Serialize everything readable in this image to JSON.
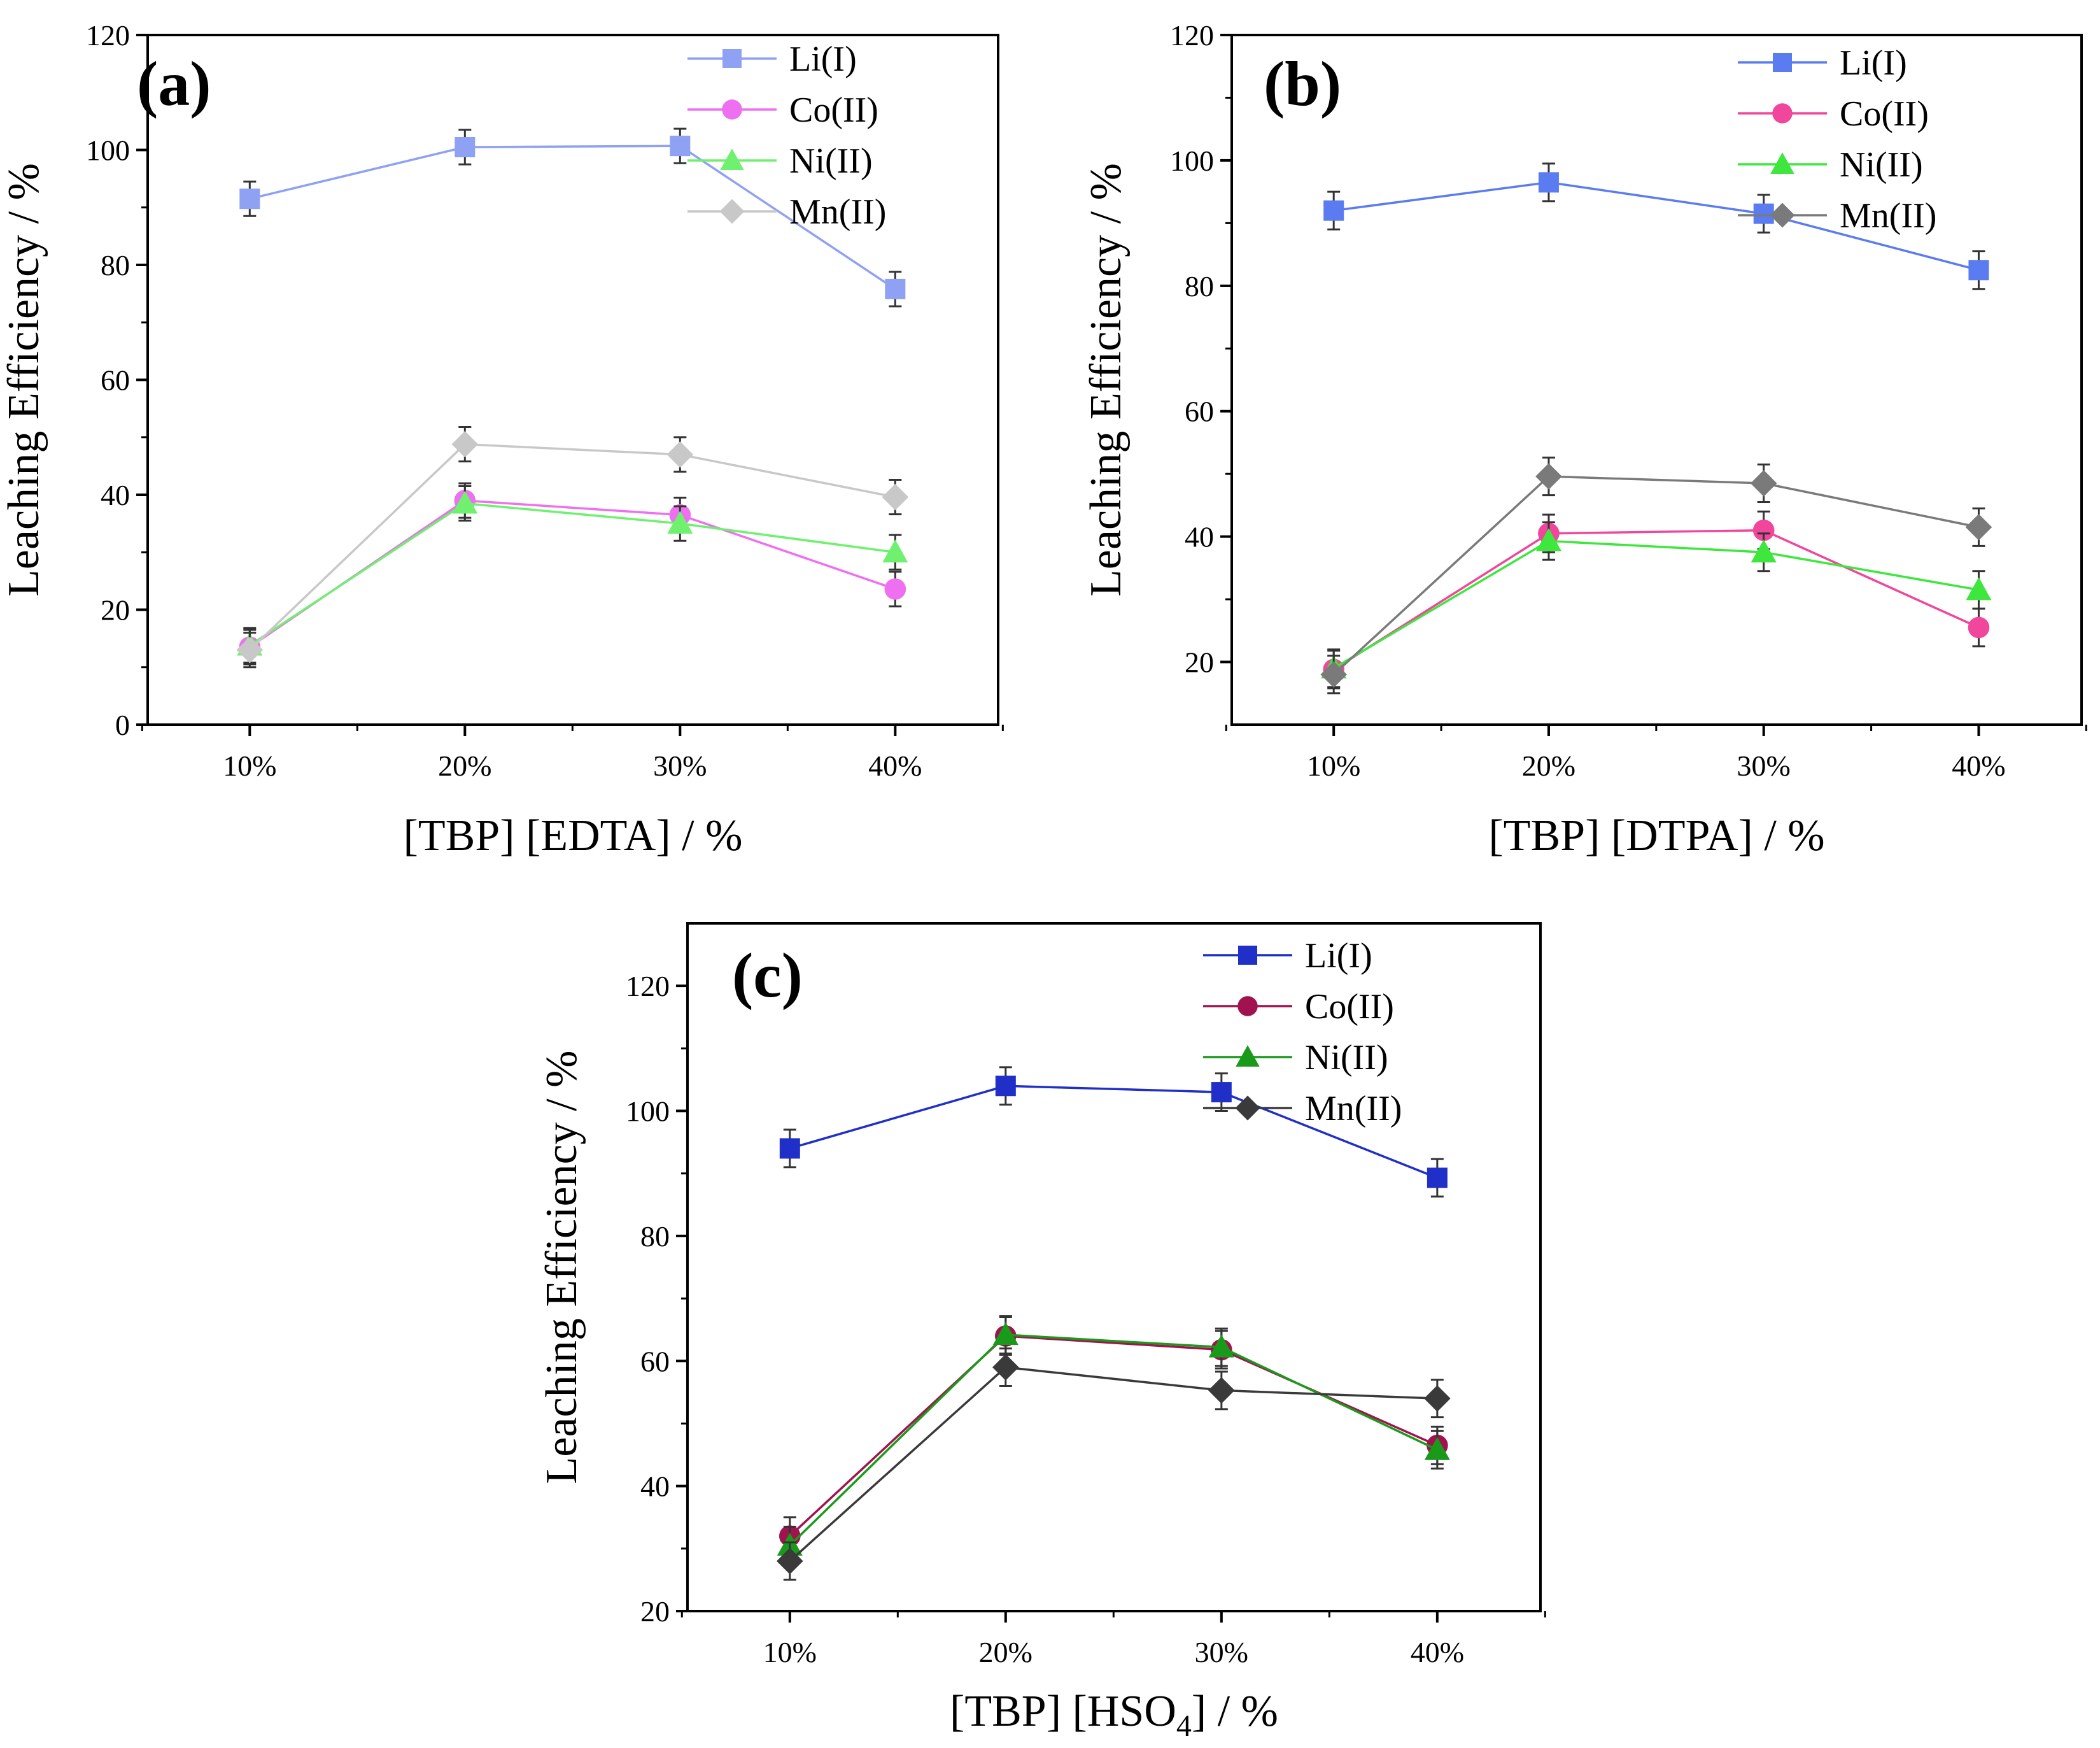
{
  "chart_data": [
    {
      "panel_label": "(a)",
      "type": "line",
      "xlabel": "[TBP] [EDTA] / %",
      "ylabel": "Leaching Efficiency / %",
      "categories": [
        "10%",
        "20%",
        "30%",
        "40%"
      ],
      "ylim": [
        0,
        120
      ],
      "yticks": [
        0,
        20,
        40,
        60,
        80,
        100,
        120
      ],
      "error_bars": true,
      "legend_position": "top-right",
      "series": [
        {
          "name": "Li(I)",
          "marker": "square",
          "color": "#8fa1f2",
          "values": [
            91.5,
            100.5,
            100.7,
            75.8
          ],
          "errors": [
            3,
            3,
            3,
            3
          ]
        },
        {
          "name": "Co(II)",
          "marker": "circle",
          "color": "#ee6ff0",
          "values": [
            13.5,
            39.0,
            36.5,
            23.6
          ],
          "errors": [
            3,
            3,
            3,
            3
          ]
        },
        {
          "name": "Ni(II)",
          "marker": "triangle",
          "color": "#6ff06f",
          "values": [
            13.8,
            38.5,
            35.0,
            30.0
          ],
          "errors": [
            3,
            3,
            3,
            3
          ]
        },
        {
          "name": "Mn(II)",
          "marker": "diamond",
          "color": "#c8c8c8",
          "values": [
            13.0,
            48.8,
            47.0,
            39.6
          ],
          "errors": [
            3,
            3,
            3,
            3
          ]
        }
      ]
    },
    {
      "panel_label": "(b)",
      "type": "line",
      "xlabel": "[TBP] [DTPA] / %",
      "ylabel": "Leaching Efficiency / %",
      "categories": [
        "10%",
        "20%",
        "30%",
        "40%"
      ],
      "ylim": [
        10,
        120
      ],
      "yticks": [
        20,
        40,
        60,
        80,
        100,
        120
      ],
      "error_bars": true,
      "legend_position": "top-right",
      "series": [
        {
          "name": "Li(I)",
          "marker": "square",
          "color": "#5b7cf0",
          "values": [
            92.0,
            96.5,
            91.5,
            82.5
          ],
          "errors": [
            3,
            3,
            3,
            3
          ]
        },
        {
          "name": "Co(II)",
          "marker": "circle",
          "color": "#f0469b",
          "values": [
            18.8,
            40.5,
            41.0,
            25.5
          ],
          "errors": [
            3,
            3,
            3,
            3
          ]
        },
        {
          "name": "Ni(II)",
          "marker": "triangle",
          "color": "#3ee63e",
          "values": [
            19.0,
            39.3,
            37.5,
            31.5
          ],
          "errors": [
            3,
            3,
            3,
            3
          ]
        },
        {
          "name": "Mn(II)",
          "marker": "diamond",
          "color": "#7a7a7a",
          "values": [
            18.0,
            49.6,
            48.5,
            41.5
          ],
          "errors": [
            3,
            3,
            3,
            3
          ]
        }
      ]
    },
    {
      "panel_label": "(c)",
      "type": "line",
      "xlabel": "[TBP] [HSO",
      "xlabel_sub": "4",
      "xlabel_suffix": "] / %",
      "ylabel": "Leaching Efficiency / %",
      "categories": [
        "10%",
        "20%",
        "30%",
        "40%"
      ],
      "ylim": [
        20,
        130
      ],
      "yticks": [
        20,
        40,
        60,
        80,
        100,
        120
      ],
      "error_bars": true,
      "legend_position": "top-right",
      "series": [
        {
          "name": "Li(I)",
          "marker": "square",
          "color": "#1f2fc8",
          "values": [
            94.0,
            104.0,
            103.0,
            89.3
          ],
          "errors": [
            3,
            3,
            3,
            3
          ]
        },
        {
          "name": "Co(II)",
          "marker": "circle",
          "color": "#a0134f",
          "values": [
            32.0,
            64.0,
            61.8,
            46.5
          ],
          "errors": [
            3,
            3,
            3,
            3
          ]
        },
        {
          "name": "Ni(II)",
          "marker": "triangle",
          "color": "#1a9a1a",
          "values": [
            30.5,
            64.2,
            62.2,
            45.8
          ],
          "errors": [
            3,
            3,
            3,
            3
          ]
        },
        {
          "name": "Mn(II)",
          "marker": "diamond",
          "color": "#3a3a3a",
          "values": [
            28.0,
            59.0,
            55.3,
            54.0
          ],
          "errors": [
            3,
            3,
            3,
            3
          ]
        }
      ]
    }
  ]
}
